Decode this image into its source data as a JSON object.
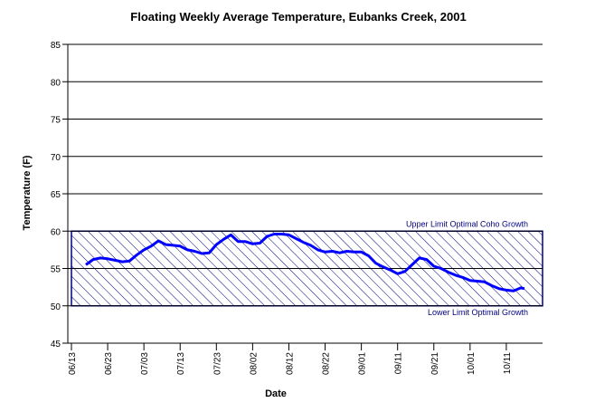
{
  "chart_data": {
    "type": "line",
    "title": "Floating Weekly Average Temperature, Eubanks Creek, 2001",
    "x_label": "Date",
    "y_label": "Temperature (F)",
    "x": [
      "06/17",
      "06/19",
      "06/21",
      "06/23",
      "06/25",
      "06/27",
      "06/29",
      "07/01",
      "07/03",
      "07/05",
      "07/07",
      "07/09",
      "07/11",
      "07/13",
      "07/15",
      "07/17",
      "07/19",
      "07/21",
      "07/23",
      "07/25",
      "07/27",
      "07/29",
      "07/31",
      "08/02",
      "08/04",
      "08/06",
      "08/08",
      "08/10",
      "08/12",
      "08/14",
      "08/16",
      "08/18",
      "08/20",
      "08/22",
      "08/24",
      "08/26",
      "08/28",
      "08/30",
      "09/01",
      "09/03",
      "09/05",
      "09/07",
      "09/09",
      "09/11",
      "09/13",
      "09/15",
      "09/17",
      "09/19",
      "09/21",
      "09/23",
      "09/25",
      "09/27",
      "09/29",
      "10/01",
      "10/03",
      "10/05",
      "10/07",
      "10/09",
      "10/11",
      "10/13",
      "10/15",
      "10/16"
    ],
    "series": [
      {
        "name": "Floating Weekly Average Temperature",
        "color": "#0000ff",
        "values": [
          55.5,
          56.2,
          56.4,
          56.3,
          56.1,
          55.9,
          56.0,
          56.8,
          57.5,
          58.0,
          58.7,
          58.2,
          58.1,
          58.0,
          57.5,
          57.3,
          57.0,
          57.1,
          58.2,
          58.9,
          59.5,
          58.6,
          58.6,
          58.3,
          58.4,
          59.3,
          59.6,
          59.6,
          59.5,
          59.0,
          58.5,
          58.1,
          57.5,
          57.2,
          57.3,
          57.1,
          57.3,
          57.2,
          57.2,
          56.7,
          55.7,
          55.2,
          54.8,
          54.3,
          54.6,
          55.5,
          56.4,
          56.2,
          55.3,
          55.0,
          54.5,
          54.1,
          53.8,
          53.4,
          53.3,
          53.2,
          52.7,
          52.3,
          52.1,
          52.0,
          52.4,
          52.3
        ]
      }
    ],
    "xlim": [
      "06/13",
      "10/21"
    ],
    "xticks": [
      "06/13",
      "06/23",
      "07/03",
      "07/13",
      "07/23",
      "08/02",
      "08/12",
      "08/22",
      "09/01",
      "09/11",
      "09/21",
      "10/01",
      "10/11"
    ],
    "ylim": [
      45,
      85
    ],
    "yticks": [
      45,
      50,
      55,
      60,
      65,
      70,
      75,
      80,
      85
    ],
    "grid": true,
    "band": {
      "from": 50,
      "to": 60,
      "color": "#000080",
      "upper_label": "Upper Limit Optimal Coho Growth",
      "lower_label": "Lower Limit Optimal Growth"
    }
  }
}
